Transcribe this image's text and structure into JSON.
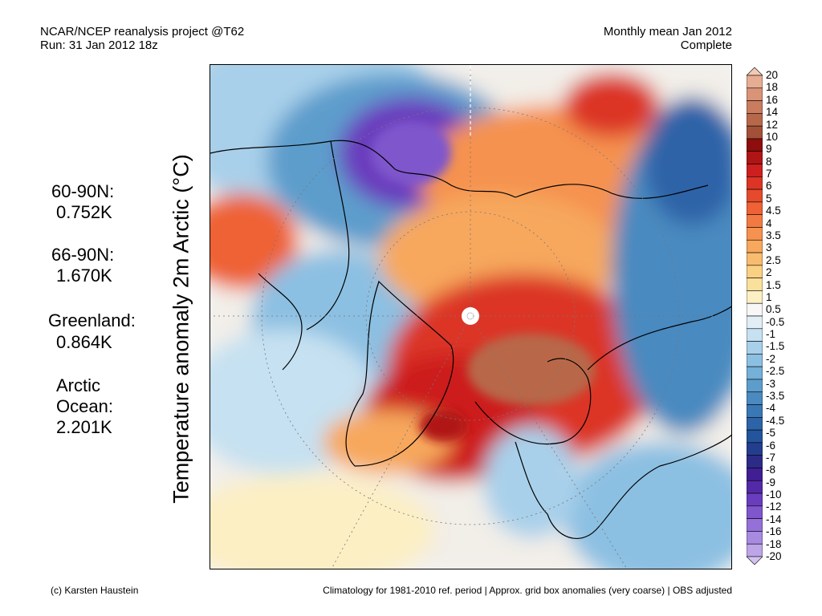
{
  "header": {
    "source": "NCAR/NCEP reanalysis project @T62",
    "run": "Run: 31 Jan 2012 18z",
    "period": "Monthly mean Jan 2012",
    "status": "Complete"
  },
  "stats": [
    {
      "region": "60-90N:",
      "value": "0.752K"
    },
    {
      "region": "66-90N:",
      "value": "1.670K"
    },
    {
      "region": "Greenland:",
      "value": "0.864K"
    },
    {
      "region": "Arctic Ocean:",
      "value": "2.201K"
    }
  ],
  "y_title": "Temperature anomaly 2m Arctic (°C)",
  "footer": {
    "credit": "(c) Karsten Haustein",
    "note": "Climatology for 1981-2010 ref. period | Approx. grid box anomalies (very coarse) | OBS adjusted"
  },
  "colorbar": {
    "labels": [
      "20",
      "18",
      "16",
      "14",
      "12",
      "10",
      "9",
      "8",
      "7",
      "6",
      "5",
      "4.5",
      "4",
      "3.5",
      "3",
      "2.5",
      "2",
      "1.5",
      "1",
      "0.5",
      "-0.5",
      "-1",
      "-1.5",
      "-2",
      "-2.5",
      "-3",
      "-3.5",
      "-4",
      "-4.5",
      "-5",
      "-6",
      "-7",
      "-8",
      "-9",
      "-10",
      "-12",
      "-14",
      "-16",
      "-18",
      "-20"
    ],
    "colors": [
      "#f3c9b3",
      "#e7ad93",
      "#d99376",
      "#c97c5e",
      "#b8684a",
      "#a25138",
      "#8e0d0d",
      "#b01515",
      "#cd1f1f",
      "#dc3426",
      "#e64a2d",
      "#ee6236",
      "#f27a42",
      "#f5924f",
      "#f7a85d",
      "#f9bc6e",
      "#fad083",
      "#fbe09c",
      "#fcefc4",
      "#f7f7f7",
      "#e2eef6",
      "#c6e1f1",
      "#a9d0ea",
      "#8cc0e2",
      "#74b0d8",
      "#5d9dcc",
      "#4a8ac0",
      "#3a77b5",
      "#2d64a8",
      "#23549c",
      "#243e8f",
      "#2d2b88",
      "#3f1f93",
      "#5329a7",
      "#6a3dbe",
      "#7f56cc",
      "#9470d8",
      "#a98ae1",
      "#bda5e8",
      "#d2c2f0"
    ]
  }
}
